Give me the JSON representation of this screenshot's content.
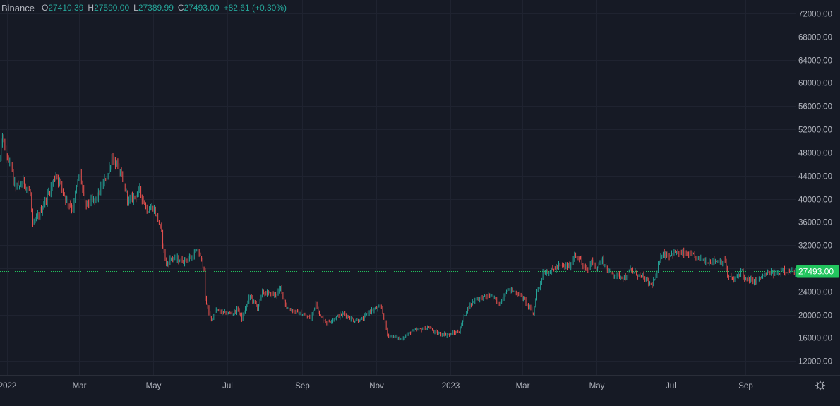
{
  "legend": {
    "exchange": "Binance",
    "open_label": "O",
    "open": "27410.39",
    "high_label": "H",
    "high": "27590.00",
    "low_label": "L",
    "low": "27389.99",
    "close_label": "C",
    "close": "27493.00",
    "change": "+82.61 (+0.30%)"
  },
  "settings_icon": "gear-icon",
  "colors": {
    "background": "#161a25",
    "grid": "#1f2330",
    "up": "#26a69a",
    "down": "#ef5350",
    "axis_text": "#b2b5be",
    "price_label_bg": "#22c55e"
  },
  "chart_data": {
    "type": "candlestick",
    "title": "",
    "xlabel": "",
    "ylabel": "",
    "ylim": [
      9600,
      74300
    ],
    "y_ticks": [
      72000,
      68000,
      64000,
      60000,
      56000,
      52000,
      48000,
      44000,
      40000,
      36000,
      32000,
      28000,
      24000,
      20000,
      16000,
      12000
    ],
    "y_tick_labels": [
      "72000.00",
      "68000.00",
      "64000.00",
      "60000.00",
      "56000.00",
      "52000.00",
      "48000.00",
      "44000.00",
      "40000.00",
      "36000.00",
      "32000.00",
      "28000.00",
      "24000.00",
      "20000.00",
      "16000.00",
      "12000.00"
    ],
    "x_range": [
      "2021-12-26",
      "2023-10-12"
    ],
    "x_ticks": [
      "2022-01-01",
      "2022-03-01",
      "2022-05-01",
      "2022-07-01",
      "2022-09-01",
      "2022-11-01",
      "2023-01-01",
      "2023-03-01",
      "2023-05-01",
      "2023-07-01",
      "2023-09-01"
    ],
    "x_tick_labels": [
      "2022",
      "Mar",
      "May",
      "Jul",
      "Sep",
      "Nov",
      "2023",
      "Mar",
      "May",
      "Jul",
      "Sep"
    ],
    "current_price": 27493.0,
    "current_price_label": "27493.00",
    "grid": true,
    "price_anchors": [
      [
        "2021-12-26",
        47000
      ],
      [
        "2021-12-28",
        50800
      ],
      [
        "2022-01-01",
        46200
      ],
      [
        "2022-01-03",
        47000
      ],
      [
        "2022-01-06",
        43000
      ],
      [
        "2022-01-10",
        41800
      ],
      [
        "2022-01-14",
        43100
      ],
      [
        "2022-01-20",
        40800
      ],
      [
        "2022-01-22",
        35100
      ],
      [
        "2022-01-24",
        36200
      ],
      [
        "2022-01-28",
        37700
      ],
      [
        "2022-02-05",
        41500
      ],
      [
        "2022-02-10",
        44200
      ],
      [
        "2022-02-14",
        42500
      ],
      [
        "2022-02-18",
        40000
      ],
      [
        "2022-02-24",
        38300
      ],
      [
        "2022-02-28",
        43100
      ],
      [
        "2022-03-02",
        44400
      ],
      [
        "2022-03-06",
        39000
      ],
      [
        "2022-03-14",
        39700
      ],
      [
        "2022-03-18",
        41200
      ],
      [
        "2022-03-25",
        44400
      ],
      [
        "2022-03-28",
        47100
      ],
      [
        "2022-04-01",
        45800
      ],
      [
        "2022-04-06",
        43100
      ],
      [
        "2022-04-11",
        39500
      ],
      [
        "2022-04-20",
        41400
      ],
      [
        "2022-04-26",
        38100
      ],
      [
        "2022-05-01",
        38500
      ],
      [
        "2022-05-05",
        36500
      ],
      [
        "2022-05-08",
        34000
      ],
      [
        "2022-05-10",
        31000
      ],
      [
        "2022-05-12",
        28500
      ],
      [
        "2022-05-16",
        29800
      ],
      [
        "2022-05-25",
        29300
      ],
      [
        "2022-06-01",
        29800
      ],
      [
        "2022-06-07",
        31100
      ],
      [
        "2022-06-12",
        28000
      ],
      [
        "2022-06-13",
        22500
      ],
      [
        "2022-06-18",
        19000
      ],
      [
        "2022-06-22",
        20800
      ],
      [
        "2022-06-28",
        20300
      ],
      [
        "2022-07-05",
        20200
      ],
      [
        "2022-07-10",
        20900
      ],
      [
        "2022-07-13",
        19300
      ],
      [
        "2022-07-20",
        23300
      ],
      [
        "2022-07-26",
        21100
      ],
      [
        "2022-07-30",
        23800
      ],
      [
        "2022-08-10",
        23400
      ],
      [
        "2022-08-14",
        24500
      ],
      [
        "2022-08-19",
        21200
      ],
      [
        "2022-08-30",
        20200
      ],
      [
        "2022-09-08",
        19300
      ],
      [
        "2022-09-12",
        22200
      ],
      [
        "2022-09-15",
        19800
      ],
      [
        "2022-09-21",
        18600
      ],
      [
        "2022-09-28",
        19500
      ],
      [
        "2022-10-05",
        20200
      ],
      [
        "2022-10-13",
        19000
      ],
      [
        "2022-10-20",
        19100
      ],
      [
        "2022-10-26",
        20600
      ],
      [
        "2022-11-05",
        21300
      ],
      [
        "2022-11-08",
        18500
      ],
      [
        "2022-11-10",
        16500
      ],
      [
        "2022-11-21",
        15800
      ],
      [
        "2022-11-30",
        17100
      ],
      [
        "2022-12-14",
        17800
      ],
      [
        "2022-12-20",
        16800
      ],
      [
        "2022-12-31",
        16550
      ],
      [
        "2023-01-08",
        17100
      ],
      [
        "2023-01-14",
        20800
      ],
      [
        "2023-01-21",
        22700
      ],
      [
        "2023-01-31",
        23100
      ],
      [
        "2023-02-03",
        23400
      ],
      [
        "2023-02-10",
        21700
      ],
      [
        "2023-02-16",
        24300
      ],
      [
        "2023-02-22",
        24100
      ],
      [
        "2023-02-28",
        23200
      ],
      [
        "2023-03-03",
        22400
      ],
      [
        "2023-03-10",
        20100
      ],
      [
        "2023-03-13",
        24100
      ],
      [
        "2023-03-15",
        24800
      ],
      [
        "2023-03-18",
        27300
      ],
      [
        "2023-03-24",
        27500
      ],
      [
        "2023-03-31",
        28400
      ],
      [
        "2023-04-10",
        28300
      ],
      [
        "2023-04-13",
        30400
      ],
      [
        "2023-04-17",
        29800
      ],
      [
        "2023-04-20",
        28300
      ],
      [
        "2023-04-24",
        27500
      ],
      [
        "2023-04-27",
        29400
      ],
      [
        "2023-05-01",
        28100
      ],
      [
        "2023-05-06",
        29500
      ],
      [
        "2023-05-10",
        27600
      ],
      [
        "2023-05-15",
        27000
      ],
      [
        "2023-05-25",
        26400
      ],
      [
        "2023-05-29",
        27700
      ],
      [
        "2023-06-05",
        26800
      ],
      [
        "2023-06-08",
        26500
      ],
      [
        "2023-06-15",
        25100
      ],
      [
        "2023-06-19",
        26300
      ],
      [
        "2023-06-21",
        28300
      ],
      [
        "2023-06-23",
        30500
      ],
      [
        "2023-06-30",
        30400
      ],
      [
        "2023-07-05",
        30700
      ],
      [
        "2023-07-14",
        30400
      ],
      [
        "2023-07-22",
        29900
      ],
      [
        "2023-07-31",
        29200
      ],
      [
        "2023-08-08",
        29300
      ],
      [
        "2023-08-15",
        29200
      ],
      [
        "2023-08-17",
        26600
      ],
      [
        "2023-08-22",
        26000
      ],
      [
        "2023-08-29",
        27700
      ],
      [
        "2023-08-31",
        26000
      ],
      [
        "2023-09-10",
        25800
      ],
      [
        "2023-09-14",
        26500
      ],
      [
        "2023-09-20",
        27200
      ],
      [
        "2023-09-28",
        27000
      ],
      [
        "2023-10-01",
        28000
      ],
      [
        "2023-10-05",
        27400
      ],
      [
        "2023-10-12",
        27493
      ]
    ]
  }
}
